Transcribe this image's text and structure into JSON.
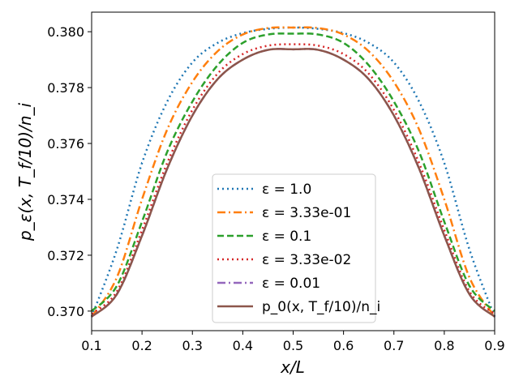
{
  "chart_data": {
    "type": "line",
    "xlabel": "x/L",
    "ylabel": "p_ε(x, T_f/10)/n_i",
    "xlim": [
      0.1,
      0.9
    ],
    "ylim": [
      0.3693,
      0.3807
    ],
    "xticks": [
      0.1,
      0.2,
      0.3,
      0.4,
      0.5,
      0.6,
      0.7,
      0.8,
      0.9
    ],
    "xtick_labels": [
      "0.1",
      "0.2",
      "0.3",
      "0.4",
      "0.5",
      "0.6",
      "0.7",
      "0.8",
      "0.9"
    ],
    "yticks": [
      0.37,
      0.372,
      0.374,
      0.376,
      0.378,
      0.38
    ],
    "ytick_labels": [
      "0.370",
      "0.372",
      "0.374",
      "0.376",
      "0.378",
      "0.380"
    ],
    "grid": false,
    "legend_position": "lower-center",
    "series": [
      {
        "name": "ε = 1.0",
        "color": "#1f77b4",
        "style": "dotted",
        "x": [
          0.1,
          0.15,
          0.2,
          0.25,
          0.3,
          0.35,
          0.4,
          0.45,
          0.5,
          0.55,
          0.6,
          0.65,
          0.7,
          0.75,
          0.8,
          0.85,
          0.9
        ],
        "y": [
          0.3698,
          0.3722,
          0.3753,
          0.3775,
          0.3789,
          0.3796,
          0.37995,
          0.3801,
          0.38015,
          0.3801,
          0.37995,
          0.3796,
          0.3789,
          0.3775,
          0.3753,
          0.3722,
          0.3698
        ]
      },
      {
        "name": "ε = 3.33e-01",
        "color": "#ff7f0e",
        "style": "dashdot",
        "x": [
          0.1,
          0.15,
          0.2,
          0.25,
          0.3,
          0.35,
          0.4,
          0.45,
          0.5,
          0.55,
          0.6,
          0.65,
          0.7,
          0.75,
          0.8,
          0.85,
          0.9
        ],
        "y": [
          0.3698,
          0.3712,
          0.374,
          0.3765,
          0.3782,
          0.3793,
          0.3799,
          0.38013,
          0.38015,
          0.38013,
          0.3799,
          0.3793,
          0.3782,
          0.3765,
          0.374,
          0.3712,
          0.3698
        ]
      },
      {
        "name": "ε = 0.1",
        "color": "#2ca02c",
        "style": "dashed",
        "x": [
          0.1,
          0.15,
          0.2,
          0.25,
          0.3,
          0.35,
          0.4,
          0.45,
          0.5,
          0.55,
          0.6,
          0.65,
          0.7,
          0.75,
          0.8,
          0.85,
          0.9
        ],
        "y": [
          0.37,
          0.3709,
          0.3732,
          0.3757,
          0.3775,
          0.3788,
          0.3796,
          0.3799,
          0.37993,
          0.3799,
          0.3796,
          0.3788,
          0.3775,
          0.3757,
          0.3732,
          0.3709,
          0.37
        ]
      },
      {
        "name": "ε = 3.33e-02",
        "color": "#d62728",
        "style": "dotted",
        "x": [
          0.1,
          0.15,
          0.2,
          0.25,
          0.3,
          0.35,
          0.4,
          0.45,
          0.5,
          0.55,
          0.6,
          0.65,
          0.7,
          0.75,
          0.8,
          0.85,
          0.9
        ],
        "y": [
          0.3699,
          0.3707,
          0.3729,
          0.3753,
          0.3772,
          0.3785,
          0.3792,
          0.3795,
          0.37955,
          0.3795,
          0.3792,
          0.3785,
          0.3772,
          0.3753,
          0.3729,
          0.3707,
          0.3699
        ]
      },
      {
        "name": "ε = 0.01",
        "color": "#9467bd",
        "style": "dashdot",
        "x": [
          0.1,
          0.15,
          0.2,
          0.25,
          0.3,
          0.35,
          0.4,
          0.45,
          0.5,
          0.55,
          0.6,
          0.65,
          0.7,
          0.75,
          0.8,
          0.85,
          0.9
        ],
        "y": [
          0.3698,
          0.3706,
          0.3727,
          0.3751,
          0.377,
          0.3783,
          0.379,
          0.37935,
          0.37937,
          0.37935,
          0.379,
          0.3783,
          0.377,
          0.3751,
          0.3727,
          0.3706,
          0.3698
        ]
      },
      {
        "name": "p_0(x, T_f/10)/n_i",
        "color": "#8c564b",
        "style": "solid",
        "x": [
          0.1,
          0.15,
          0.2,
          0.25,
          0.3,
          0.35,
          0.4,
          0.45,
          0.5,
          0.55,
          0.6,
          0.65,
          0.7,
          0.75,
          0.8,
          0.85,
          0.9
        ],
        "y": [
          0.3698,
          0.3706,
          0.3727,
          0.3751,
          0.377,
          0.3783,
          0.379,
          0.37935,
          0.37937,
          0.37935,
          0.379,
          0.3783,
          0.377,
          0.3751,
          0.3727,
          0.3706,
          0.3698
        ]
      }
    ]
  }
}
